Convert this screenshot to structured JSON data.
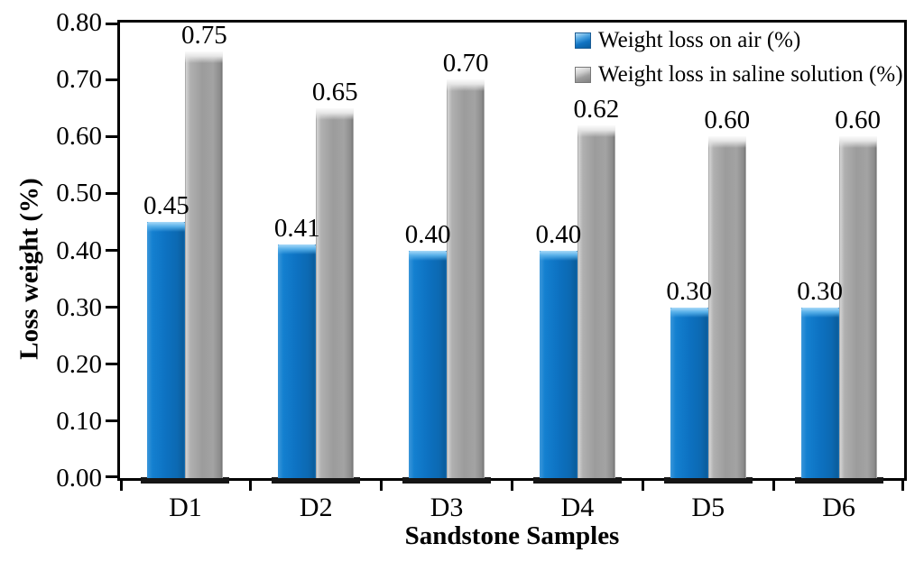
{
  "chart_data": {
    "type": "bar",
    "title": "",
    "xlabel": "Sandstone Samples",
    "ylabel": "Loss weight (%)",
    "categories": [
      "D1",
      "D2",
      "D3",
      "D4",
      "D5",
      "D6"
    ],
    "series": [
      {
        "name": "Weight loss on air (%)",
        "color": "#0d72c2",
        "values": [
          0.45,
          0.41,
          0.4,
          0.4,
          0.3,
          0.3
        ]
      },
      {
        "name": "Weight loss in saline solution (%)",
        "color": "#9c9c9c",
        "values": [
          0.75,
          0.65,
          0.7,
          0.62,
          0.6,
          0.6
        ]
      }
    ],
    "ylim": [
      0,
      0.8
    ],
    "ytick_step": 0.1,
    "ytick_labels": [
      "0.00",
      "0.10",
      "0.20",
      "0.30",
      "0.40",
      "0.50",
      "0.60",
      "0.70",
      "0.80"
    ],
    "data_labels": true,
    "data_label_format": "2dp",
    "legend_position": "top-right-inside",
    "grid": false,
    "axis_color": "#000000",
    "background_color": "#ffffff"
  }
}
